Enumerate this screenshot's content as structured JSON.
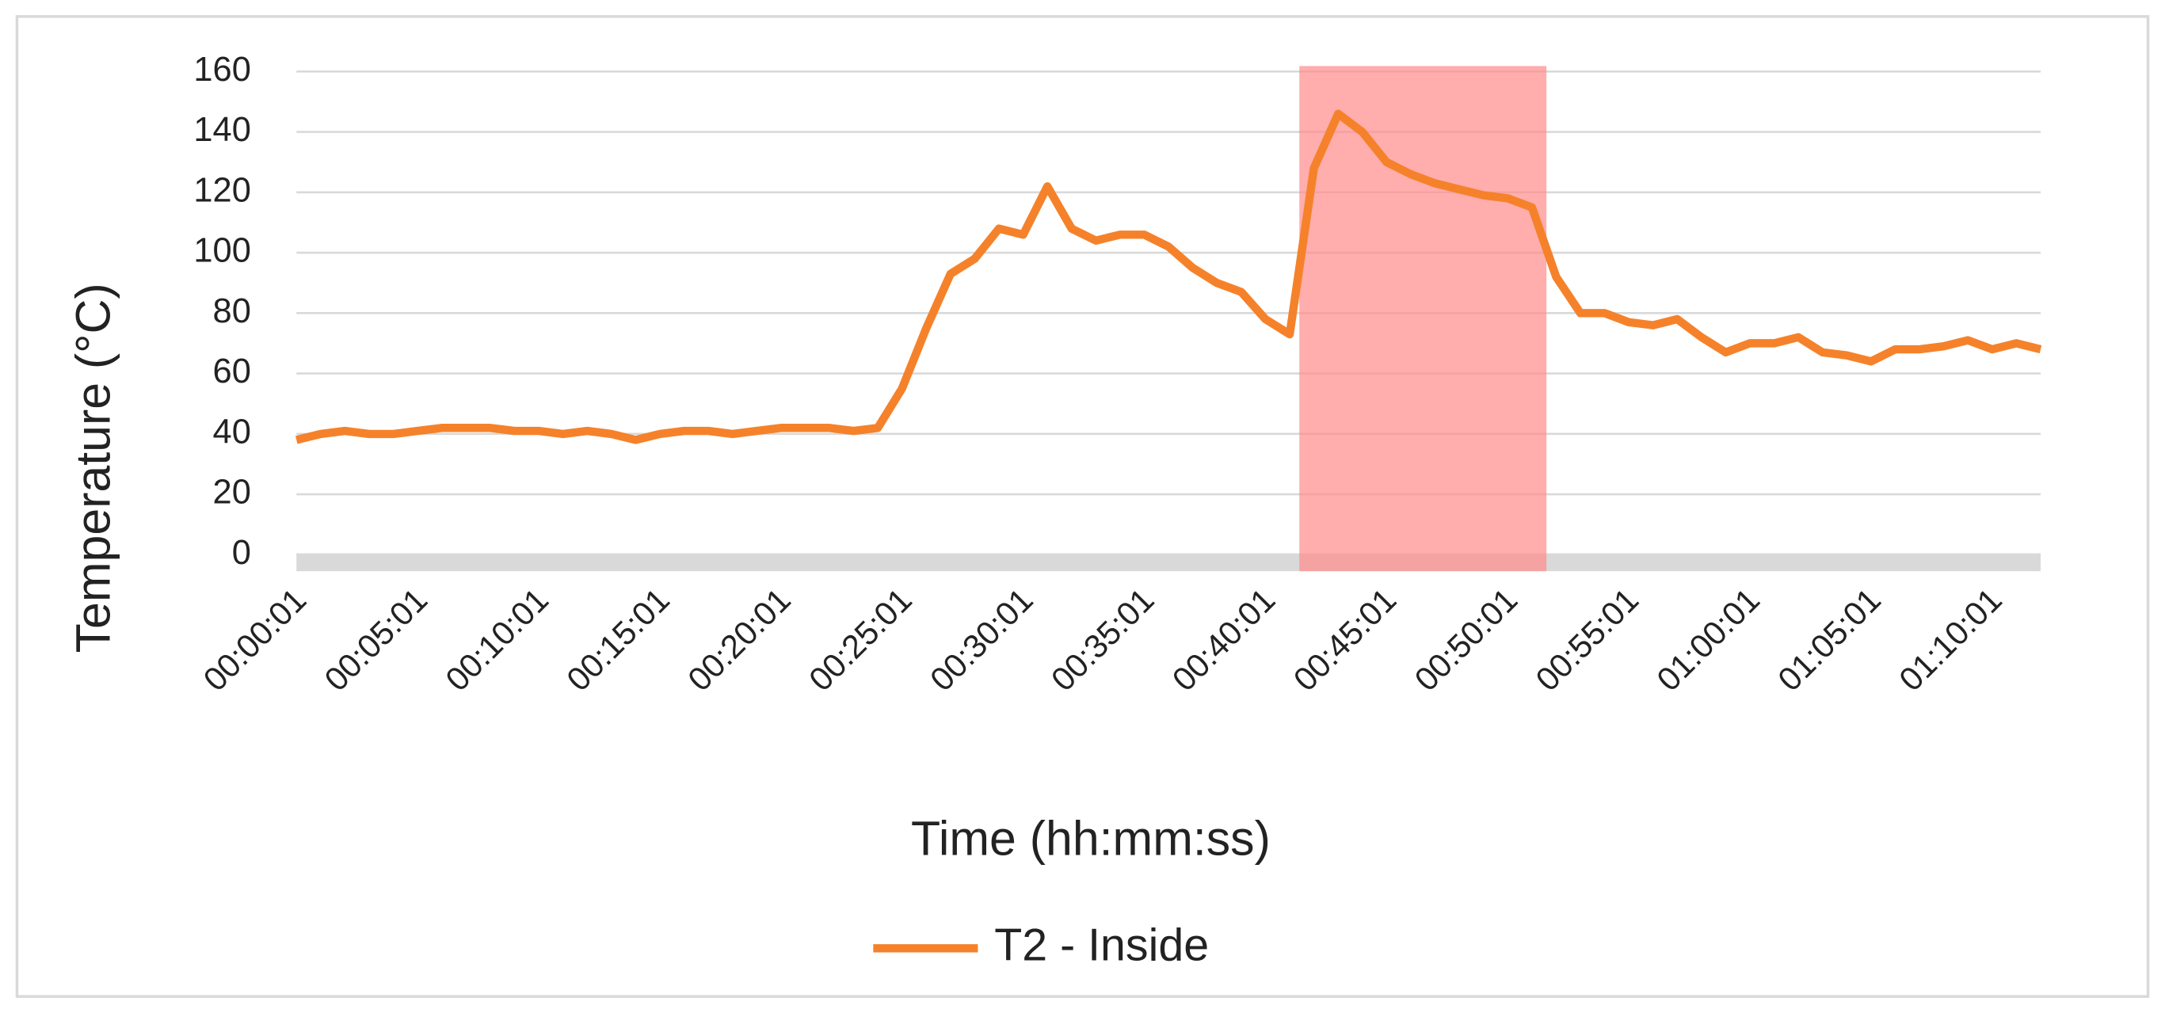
{
  "chart_data": {
    "type": "line",
    "x_label": "Time (hh:mm:ss)",
    "y_label": "Temperature  (°C)",
    "categories": [
      "00:00:01",
      null,
      null,
      null,
      null,
      "00:05:01",
      null,
      null,
      null,
      null,
      "00:10:01",
      null,
      null,
      null,
      null,
      "00:15:01",
      null,
      null,
      null,
      null,
      "00:20:01",
      null,
      null,
      null,
      null,
      "00:25:01",
      null,
      null,
      null,
      null,
      "00:30:01",
      null,
      null,
      null,
      null,
      "00:35:01",
      null,
      null,
      null,
      null,
      "00:40:01",
      null,
      null,
      null,
      null,
      "00:45:01",
      null,
      null,
      null,
      null,
      "00:50:01",
      null,
      null,
      null,
      null,
      "00:55:01",
      null,
      null,
      null,
      null,
      "01:00:01",
      null,
      null,
      null,
      null,
      "01:05:01",
      null,
      null,
      null,
      null,
      "01:10:01",
      null,
      null
    ],
    "series": [
      {
        "name": "T2 -  Inside",
        "color": "#f5822a",
        "values": [
          38,
          40,
          41,
          40,
          40,
          41,
          42,
          42,
          42,
          41,
          41,
          40,
          41,
          40,
          38,
          40,
          41,
          41,
          40,
          41,
          42,
          42,
          42,
          41,
          42,
          55,
          75,
          93,
          98,
          108,
          106,
          122,
          108,
          104,
          106,
          106,
          102,
          95,
          90,
          87,
          78,
          73,
          128,
          146,
          140,
          130,
          126,
          123,
          121,
          119,
          118,
          115,
          92,
          80,
          80,
          77,
          76,
          78,
          72,
          67,
          70,
          70,
          72,
          67,
          66,
          64,
          68,
          68,
          69,
          71,
          68,
          70,
          68
        ]
      }
    ],
    "ylim": [
      0,
      160
    ],
    "yticks": [
      0,
      20,
      40,
      60,
      80,
      100,
      120,
      140,
      160
    ],
    "grid": true,
    "highlight_index_range": [
      41.4,
      51.6
    ],
    "highlight_color": "#ff8a8a",
    "legend": "bottom"
  }
}
